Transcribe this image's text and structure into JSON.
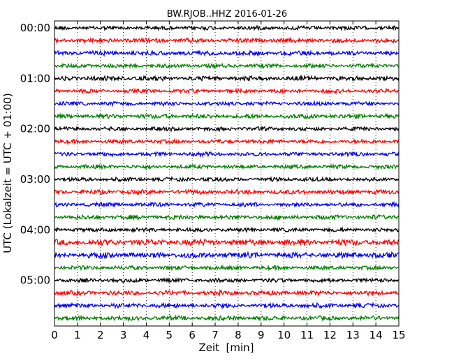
{
  "chart_data": {
    "type": "line",
    "title": "BW.RJOB..HHZ 2016-01-26",
    "xlabel": "Zeit  [min]",
    "ylabel": "UTC (Lokalzeit = UTC + 01:00)",
    "xlim": [
      0,
      15
    ],
    "x_ticks": [
      0,
      1,
      2,
      3,
      4,
      5,
      6,
      7,
      8,
      9,
      10,
      11,
      12,
      13,
      14,
      15
    ],
    "y_tick_labels": [
      "00:00",
      "01:00",
      "02:00",
      "03:00",
      "04:00",
      "05:00"
    ],
    "traces_per_hour": 4,
    "trace_interval_min": 15,
    "trace_colors": [
      "#000000",
      "#ff0000",
      "#0000ff",
      "#008000"
    ],
    "vertical_grid": "dotted",
    "traces": [
      {
        "start": "00:00",
        "amplitude": 0.35
      },
      {
        "start": "00:15",
        "amplitude": 0.4
      },
      {
        "start": "00:30",
        "amplitude": 0.4
      },
      {
        "start": "00:45",
        "amplitude": 0.35
      },
      {
        "start": "01:00",
        "amplitude": 0.4
      },
      {
        "start": "01:15",
        "amplitude": 0.35
      },
      {
        "start": "01:30",
        "amplitude": 0.35
      },
      {
        "start": "01:45",
        "amplitude": 0.4
      },
      {
        "start": "02:00",
        "amplitude": 0.35
      },
      {
        "start": "02:15",
        "amplitude": 0.35
      },
      {
        "start": "02:30",
        "amplitude": 0.35
      },
      {
        "start": "02:45",
        "amplitude": 0.35
      },
      {
        "start": "03:00",
        "amplitude": 0.35
      },
      {
        "start": "03:15",
        "amplitude": 0.4
      },
      {
        "start": "03:30",
        "amplitude": 0.35
      },
      {
        "start": "03:45",
        "amplitude": 0.4
      },
      {
        "start": "04:00",
        "amplitude": 0.35
      },
      {
        "start": "04:15",
        "amplitude": 0.55
      },
      {
        "start": "04:30",
        "amplitude": 0.5
      },
      {
        "start": "04:45",
        "amplitude": 0.35
      },
      {
        "start": "05:00",
        "amplitude": 0.35
      },
      {
        "start": "05:15",
        "amplitude": 0.4
      },
      {
        "start": "05:30",
        "amplitude": 0.4
      },
      {
        "start": "05:45",
        "amplitude": 0.4
      }
    ]
  }
}
